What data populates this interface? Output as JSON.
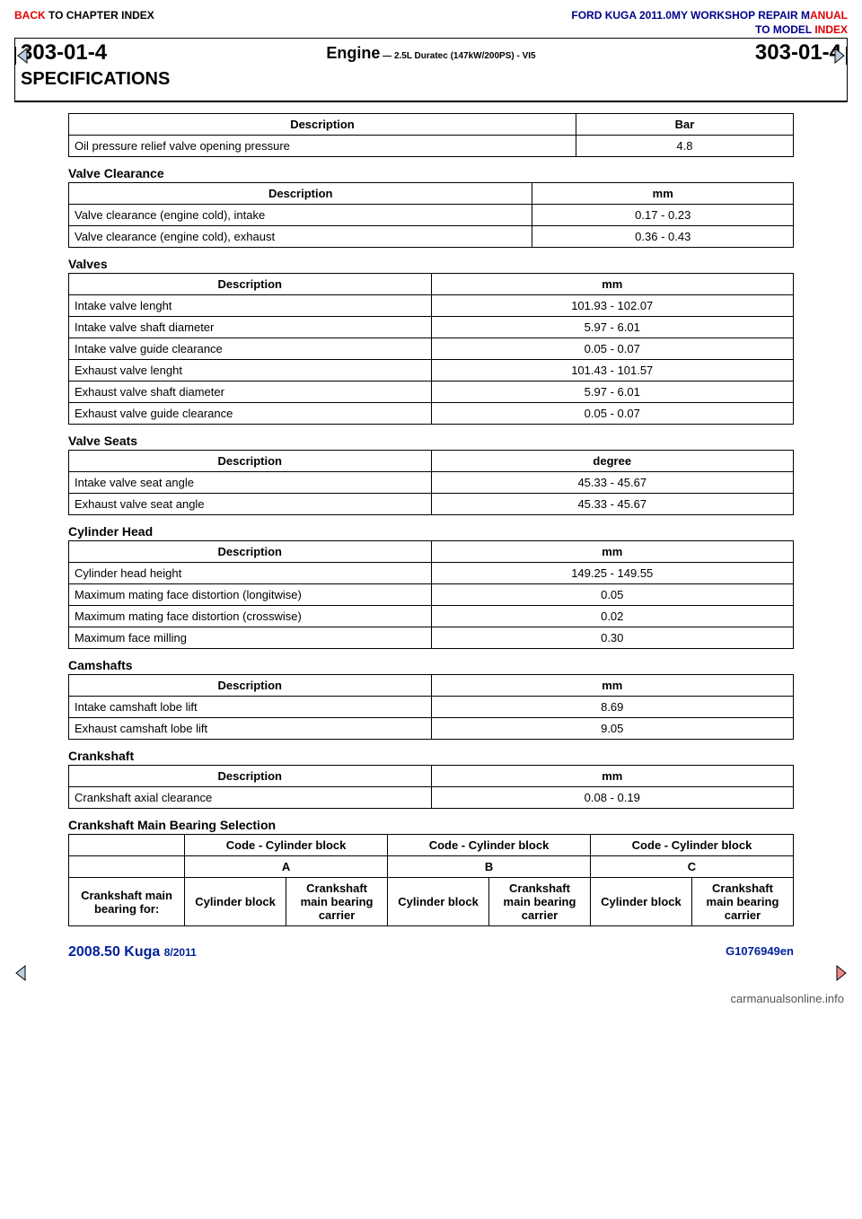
{
  "nav": {
    "back_black": "BACK ",
    "back_red": "TO CHAPTER INDEX",
    "title_blue": "FORD KUGA 2011.0MY WORKSHOP REPAIR M",
    "title_red": "ANUAL",
    "model_blue": "TO MODEL ",
    "model_red": "INDEX"
  },
  "header": {
    "section_left": "303-01-4",
    "engine_big": "Engine",
    "engine_small": " — 2.5L Duratec (147kW/200PS) - VI5",
    "section_right": "303-01-4",
    "spec_title": "SPECIFICATIONS"
  },
  "colors": {
    "blue": "#001f9c",
    "red": "#e20000",
    "black": "#000000"
  },
  "table_pressure": {
    "headers": [
      "Description",
      "Bar"
    ],
    "rows": [
      [
        "Oil pressure relief valve opening pressure",
        "4.8"
      ]
    ],
    "col_widths": [
      "70%",
      "30%"
    ]
  },
  "table_valve_clearance": {
    "title": "Valve Clearance",
    "headers": [
      "Description",
      "mm"
    ],
    "rows": [
      [
        "Valve clearance (engine cold), intake",
        "0.17 - 0.23"
      ],
      [
        "Valve clearance (engine cold), exhaust",
        "0.36 - 0.43"
      ]
    ],
    "col_widths": [
      "64%",
      "36%"
    ]
  },
  "table_valves": {
    "title": "Valves",
    "headers": [
      "Description",
      "mm"
    ],
    "rows": [
      [
        "Intake valve lenght",
        "101.93 - 102.07"
      ],
      [
        "Intake valve shaft diameter",
        "5.97 - 6.01"
      ],
      [
        "Intake valve guide clearance",
        "0.05 - 0.07"
      ],
      [
        "Exhaust valve lenght",
        "101.43 - 101.57"
      ],
      [
        "Exhaust valve shaft diameter",
        "5.97 - 6.01"
      ],
      [
        "Exhaust valve guide clearance",
        "0.05 - 0.07"
      ]
    ],
    "col_widths": [
      "50%",
      "50%"
    ]
  },
  "table_valve_seats": {
    "title": "Valve Seats",
    "headers": [
      "Description",
      "degree"
    ],
    "rows": [
      [
        "Intake valve seat angle",
        "45.33 - 45.67"
      ],
      [
        "Exhaust valve seat angle",
        "45.33 - 45.67"
      ]
    ],
    "col_widths": [
      "50%",
      "50%"
    ]
  },
  "table_cylinder_head": {
    "title": "Cylinder Head",
    "headers": [
      "Description",
      "mm"
    ],
    "rows": [
      [
        "Cylinder head height",
        "149.25 - 149.55"
      ],
      [
        "Maximum mating face distortion (longitwise)",
        "0.05"
      ],
      [
        "Maximum mating face distortion (crosswise)",
        "0.02"
      ],
      [
        "Maximum face milling",
        "0.30"
      ]
    ],
    "col_widths": [
      "50%",
      "50%"
    ]
  },
  "table_camshafts": {
    "title": "Camshafts",
    "headers": [
      "Description",
      "mm"
    ],
    "rows": [
      [
        "Intake camshaft lobe lift",
        "8.69"
      ],
      [
        "Exhaust camshaft lobe lift",
        "9.05"
      ]
    ],
    "col_widths": [
      "50%",
      "50%"
    ]
  },
  "table_crankshaft": {
    "title": "Crankshaft",
    "headers": [
      "Description",
      "mm"
    ],
    "rows": [
      [
        "Crankshaft axial clearance",
        "0.08 - 0.19"
      ]
    ],
    "col_widths": [
      "50%",
      "50%"
    ]
  },
  "table_crank_bearing": {
    "title": "Crankshaft Main Bearing Selection",
    "row1": [
      "",
      "Code - Cylinder block",
      "Code - Cylinder block",
      "Code - Cylinder block"
    ],
    "row2": [
      "",
      "A",
      "B",
      "C"
    ],
    "row3": [
      "Crankshaft main bearing for:",
      "Cylinder block",
      "Crankshaft main bearing carrier",
      "Cylinder block",
      "Crankshaft main bearing carrier",
      "Cylinder block",
      "Crankshaft main bearing carrier"
    ]
  },
  "footer": {
    "left_big": "2008.50 Kuga ",
    "left_small": "8/2011",
    "right": "G1076949en"
  },
  "carlink": "carmanualsonline.info"
}
